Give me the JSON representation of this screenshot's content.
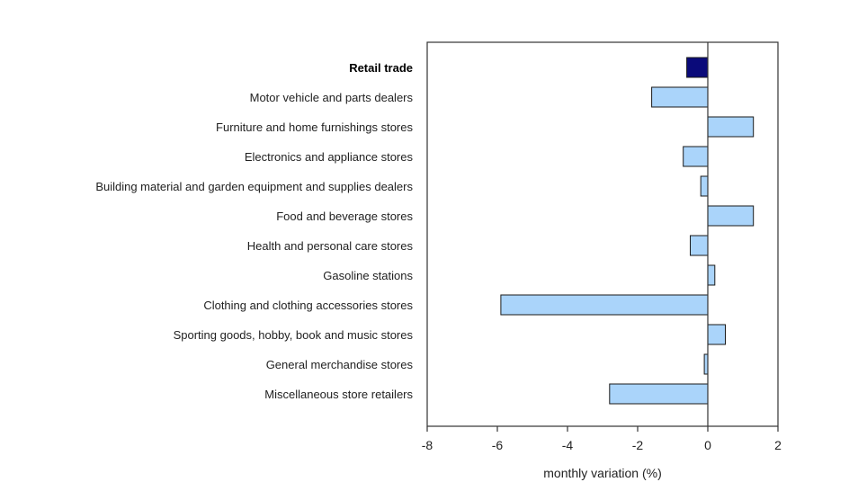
{
  "chart_data": {
    "type": "bar",
    "orientation": "horizontal",
    "title": "",
    "xlabel": "monthly variation (%)",
    "ylabel": "",
    "xlim": [
      -8,
      2
    ],
    "xticks": [
      "-8",
      "-6",
      "-4",
      "-2",
      "0",
      "2"
    ],
    "grid": false,
    "categories": [
      "Retail trade",
      "Motor vehicle and parts dealers",
      "Furniture and home furnishings stores",
      "Electronics and appliance stores",
      "Building material and garden equipment and supplies dealers",
      "Food and beverage stores",
      "Health and personal care stores",
      "Gasoline stations",
      "Clothing and clothing accessories stores",
      "Sporting goods, hobby, book and music stores",
      "General merchandise stores",
      "Miscellaneous store retailers"
    ],
    "values": [
      -0.6,
      -1.6,
      1.3,
      -0.7,
      -0.2,
      1.3,
      -0.5,
      0.2,
      -5.9,
      0.5,
      -0.1,
      -2.8
    ],
    "highlight_index": 0,
    "colors": {
      "highlight": "#0a0a7a",
      "bar": "#aad4fa",
      "outline": "#1a1a1a",
      "axis": "#333333"
    }
  }
}
